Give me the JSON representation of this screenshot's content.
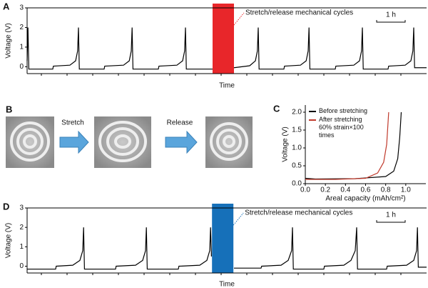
{
  "chart_data": [
    {
      "type": "line",
      "panel_label": "A",
      "ylabel": "Voltage (V)",
      "xlabel": "Time",
      "x": [
        0,
        0.03,
        0.06,
        0.9,
        0.92,
        1.5,
        1.7,
        1.77,
        1.8,
        1.83,
        2.7,
        2.72,
        3.38,
        3.58,
        3.65,
        3.68,
        3.71,
        4.6,
        4.62,
        5.25,
        5.45,
        5.52,
        5.55,
        5.58,
        6.5,
        6.9,
        7.25,
        7.8,
        8.0,
        8.07,
        8.1,
        8.13,
        9.0,
        9.02,
        9.58,
        9.78,
        9.85,
        9.88,
        9.91,
        10.8,
        10.82,
        11.45,
        11.65,
        11.72,
        11.75,
        11.78,
        12.65,
        12.67,
        13.25,
        13.45,
        13.52,
        13.55,
        13.58,
        14.0
      ],
      "values": [
        0.3,
        2.0,
        -0.12,
        -0.12,
        0.03,
        0.08,
        0.3,
        0.8,
        2.0,
        -0.12,
        -0.12,
        0.03,
        0.08,
        0.3,
        0.8,
        2.0,
        -0.12,
        -0.12,
        0.03,
        0.08,
        0.3,
        0.8,
        2.0,
        -0.12,
        -0.12,
        null,
        -0.05,
        0.05,
        0.3,
        0.8,
        2.0,
        -0.12,
        -0.12,
        0.03,
        0.08,
        0.3,
        0.8,
        2.0,
        -0.12,
        -0.12,
        0.03,
        0.08,
        0.3,
        0.8,
        2.0,
        -0.12,
        -0.12,
        0.03,
        0.08,
        0.3,
        0.8,
        2.0,
        -0.05,
        -0.05
      ],
      "color": "#000000",
      "xlim": [
        0,
        14
      ],
      "ylim": [
        -0.35,
        3
      ],
      "yticks": [
        0,
        1,
        2,
        3
      ],
      "band": [
        6.5,
        7.25
      ],
      "band_color": "#e8262a",
      "annotation": "Stretch/release mechanical cycles",
      "annotation_color": "#e8262a",
      "scale_bar": {
        "label": "1 h",
        "length": 1
      }
    },
    {
      "type": "line",
      "panel_label": "C",
      "ylabel": "Voltage (V)",
      "xlabel": "Areal capacity (mAh/cm²)",
      "xlim": [
        0,
        1.2
      ],
      "ylim": [
        0,
        2.2
      ],
      "xticks": [
        {
          "value": 0,
          "label": "0.0"
        },
        {
          "value": 0.2,
          "label": "0.2"
        },
        {
          "value": 0.4,
          "label": "0.4"
        },
        {
          "value": 0.6,
          "label": "0.6"
        },
        {
          "value": 0.8,
          "label": "0.8"
        },
        {
          "value": 1.0,
          "label": "1.0"
        }
      ],
      "yticks": [
        {
          "value": 0,
          "label": "0.0"
        },
        {
          "value": 0.5,
          "label": "0.5"
        },
        {
          "value": 1.0,
          "label": "1.0"
        },
        {
          "value": 1.5,
          "label": "1.5"
        },
        {
          "value": 2.0,
          "label": "2.0"
        }
      ],
      "series": [
        {
          "name": "Before stretching",
          "color": "#000000",
          "x": [
            0,
            0.1,
            0.5,
            0.8,
            0.88,
            0.92,
            0.94,
            0.955
          ],
          "values": [
            0.15,
            0.13,
            0.14,
            0.2,
            0.35,
            0.7,
            1.3,
            2.0
          ]
        },
        {
          "name": "After stretching 60% strain×100 times",
          "color": "#c0392b",
          "x": [
            0,
            0.3,
            0.6,
            0.72,
            0.78,
            0.81,
            0.83
          ],
          "values": [
            0.12,
            0.12,
            0.15,
            0.3,
            0.6,
            1.1,
            2.0
          ]
        }
      ]
    },
    {
      "type": "line",
      "panel_label": "D",
      "ylabel": "Voltage (V)",
      "xlabel": "Time",
      "x": [
        0,
        1.0,
        1.02,
        1.6,
        1.85,
        1.95,
        1.98,
        2.01,
        3.1,
        3.12,
        3.8,
        4.05,
        4.15,
        4.18,
        4.21,
        5.3,
        5.32,
        6.05,
        6.3,
        6.4,
        6.43,
        6.46,
        6.8,
        7.25,
        8.2,
        8.22,
        8.9,
        9.15,
        9.27,
        9.3,
        9.33,
        10.4,
        10.42,
        11.1,
        11.35,
        11.5,
        11.55,
        11.58,
        12.6,
        12.62,
        13.3,
        13.55,
        13.65,
        13.68,
        13.71,
        14.0
      ],
      "values": [
        -0.15,
        -0.15,
        0.0,
        0.05,
        0.3,
        0.8,
        2.0,
        -0.15,
        -0.15,
        0.0,
        0.05,
        0.3,
        0.8,
        2.0,
        -0.15,
        -0.15,
        0.0,
        0.05,
        0.3,
        0.8,
        2.0,
        0.5,
        null,
        -0.1,
        -0.1,
        0.0,
        0.05,
        0.3,
        0.8,
        2.0,
        -0.15,
        -0.15,
        0.0,
        0.05,
        0.3,
        0.8,
        2.0,
        -0.15,
        -0.15,
        0.0,
        0.05,
        0.3,
        0.8,
        2.0,
        -0.05,
        -0.05
      ],
      "color": "#000000",
      "xlim": [
        0,
        14
      ],
      "ylim": [
        -0.35,
        3
      ],
      "yticks": [
        0,
        1,
        2,
        3
      ],
      "band": [
        6.48,
        7.23
      ],
      "band_color": "#1670b9",
      "annotation": "Stretch/release mechanical cycles",
      "annotation_color": "#1670b9",
      "scale_bar": {
        "label": "1 h",
        "length": 1
      }
    }
  ],
  "panel_b": {
    "panel_label": "B",
    "steps": [
      "Stretch",
      "Release"
    ]
  }
}
